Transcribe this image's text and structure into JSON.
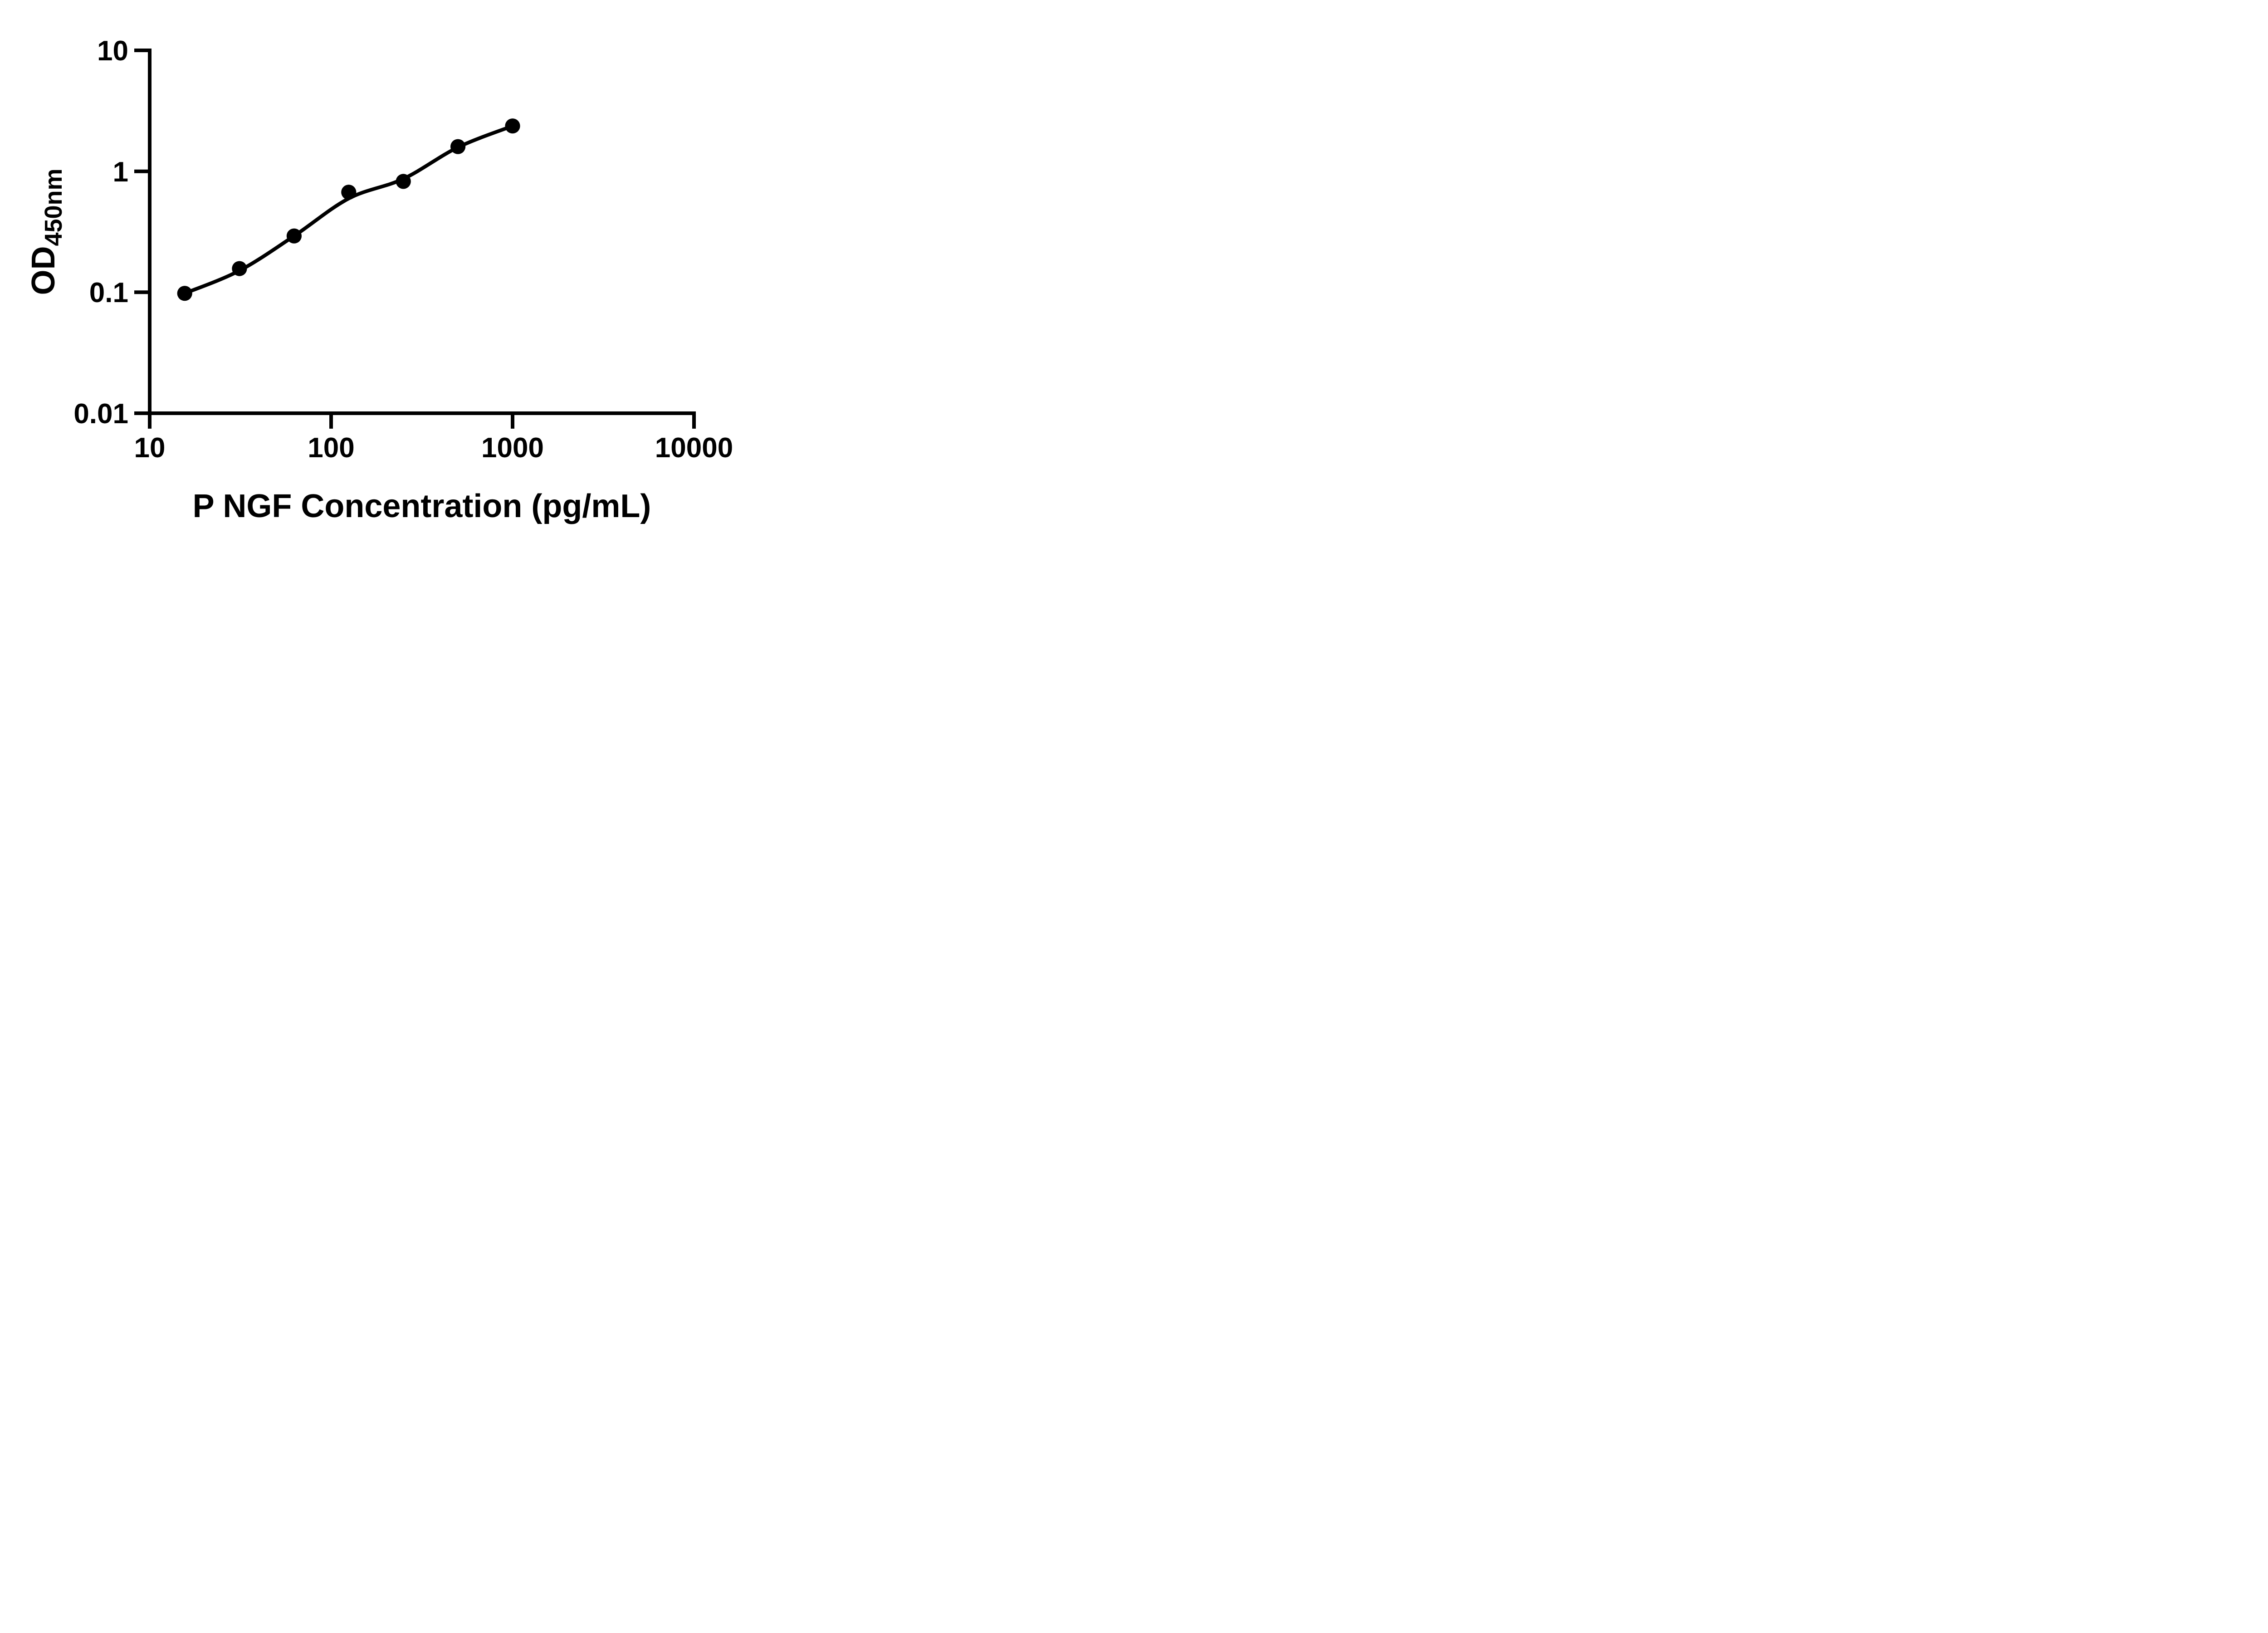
{
  "chart_data": {
    "type": "scatter",
    "title": "",
    "xlabel": "P NGF Concentration (pg/mL)",
    "ylabel_main": "OD",
    "ylabel_sub": "450nm",
    "x_scale": "log",
    "y_scale": "log",
    "xlim": [
      10,
      10000
    ],
    "ylim": [
      0.01,
      10
    ],
    "grid": "off",
    "legend": "none",
    "x_tick_labels": [
      "10",
      "100",
      "1000",
      "10000"
    ],
    "x_ticks": [
      10,
      100,
      1000,
      10000
    ],
    "y_tick_labels": [
      "10",
      "1",
      "0.1",
      "0.01"
    ],
    "y_ticks": [
      10,
      1,
      0.1,
      0.01
    ],
    "series": [
      {
        "name": "standard-curve-points",
        "marker": "filled-circle",
        "color": "#000000",
        "x": [
          15.6,
          31.25,
          62.5,
          125,
          250,
          500,
          1000
        ],
        "od": [
          0.098,
          0.157,
          0.292,
          0.672,
          0.825,
          1.6,
          2.37
        ]
      }
    ],
    "fit_curve": {
      "name": "fitted-line",
      "color": "#000000",
      "points": [
        [
          15.6,
          0.098
        ],
        [
          31.25,
          0.151
        ],
        [
          62.5,
          0.292
        ],
        [
          125,
          0.596
        ],
        [
          250,
          0.866
        ],
        [
          500,
          1.58
        ],
        [
          1000,
          2.37
        ]
      ]
    }
  }
}
